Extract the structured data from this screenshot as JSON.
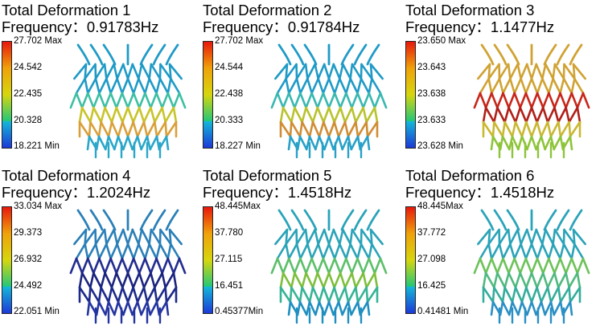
{
  "colorbar_colors": [
    "#e8180c",
    "#f0a20a",
    "#d6d60e",
    "#22c77a",
    "#14b8d8",
    "#1c3ad8"
  ],
  "panels": [
    {
      "title": "Total Deformation 1",
      "frequency": "Frequency：0.91783Hz",
      "ticks": [
        "27.702 Max",
        "24.542",
        "22.435",
        "20.328",
        "18.221 Min"
      ],
      "stent_colors": [
        "#1f9ac6",
        "#3cbfa4",
        "#c8c42a",
        "#d9a03a",
        "#2aa7c9"
      ]
    },
    {
      "title": "Total Deformation 2",
      "frequency": "Frequency：0.91784Hz",
      "ticks": [
        "27.702 Max",
        "24.544",
        "22.438",
        "20.333",
        "18.227 Min"
      ],
      "stent_colors": [
        "#1f9ac6",
        "#38b8b0",
        "#b9c22e",
        "#cf8d34",
        "#28a1c8"
      ]
    },
    {
      "title": "Total Deformation 3",
      "frequency": "Frequency：1.1477Hz",
      "ticks": [
        "23.650 Max",
        "23.643",
        "23.638",
        "23.633",
        "23.628 Min"
      ],
      "stent_colors": [
        "#d0a232",
        "#c8261a",
        "#b01f18",
        "#c9b830",
        "#8ec43a"
      ]
    },
    {
      "title": "Total Deformation 4",
      "frequency": "Frequency：1.2024Hz",
      "ticks": [
        "33.034 Max",
        "29.373",
        "26.932",
        "24.492",
        "22.051 Min"
      ],
      "stent_colors": [
        "#2a7fb8",
        "#222c8f",
        "#1a237e",
        "#1c2a8a",
        "#2535a0"
      ]
    },
    {
      "title": "Total Deformation 5",
      "frequency": "Frequency：1.4518Hz",
      "ticks": [
        "48.445Max",
        "37.780",
        "27.115",
        "16.451",
        "0.45377Min"
      ],
      "stent_colors": [
        "#2aa3b8",
        "#5cbf6a",
        "#7dbf3c",
        "#37b396",
        "#1f8fc0"
      ]
    },
    {
      "title": "Total Deformation 6",
      "frequency": "Frequency：1.4518Hz",
      "ticks": [
        "48.445Max",
        "37.772",
        "27.098",
        "16.425",
        "0.41481 Min"
      ],
      "stent_colors": [
        "#2aa3b8",
        "#6dc25a",
        "#4fb97e",
        "#34ad9c",
        "#2a8fc4"
      ]
    }
  ]
}
